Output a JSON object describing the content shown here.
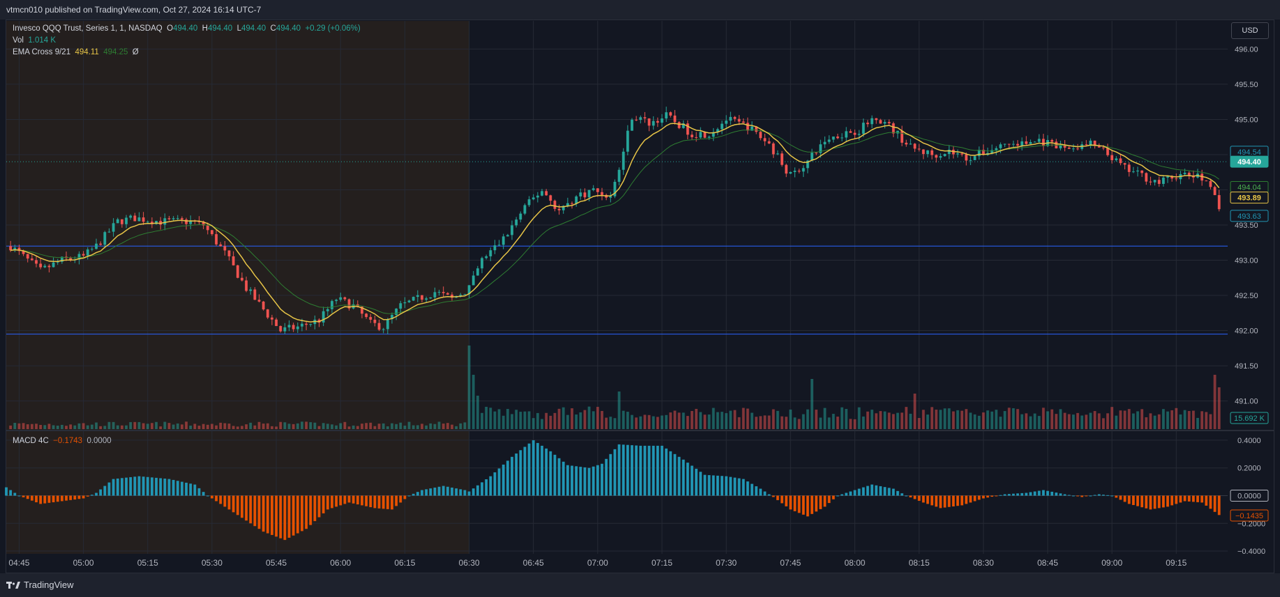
{
  "header": {
    "published": "vtmcn010 published on TradingView.com, Oct 27, 2024 16:14 UTC-7"
  },
  "footer": {
    "brand": "TradingView"
  },
  "currency_button": "USD",
  "legend": {
    "symbol": "Invesco QQQ Trust, Series 1, 1, NASDAQ",
    "o_label": "O",
    "o": "494.40",
    "h_label": "H",
    "h": "494.40",
    "l_label": "L",
    "l": "494.40",
    "c_label": "C",
    "c": "494.40",
    "change": "+0.29 (+0.06%)",
    "vol_label": "Vol",
    "vol": "1.014 K",
    "ema_label": "EMA Cross 9/21",
    "ema_fast": "494.11",
    "ema_slow": "494.25",
    "ema_extra": "Ø",
    "macd_label": "MACD 4C",
    "macd_value": "−0.1743",
    "macd_zero": "0.0000"
  },
  "colors": {
    "up": "#26a69a",
    "down": "#ef5350",
    "ema_fast": "#e8c547",
    "ema_slow": "#2e7d32",
    "macd_pos": "#2196b4",
    "macd_neg": "#e65100",
    "hline": "#2962ff",
    "premarket_bg": "#241f1e"
  },
  "chart_data": [
    {
      "type": "candlestick",
      "title": "Invesco QQQ Trust, Series 1, 1, NASDAQ",
      "x_ticks": [
        "04:45",
        "05:00",
        "05:15",
        "05:30",
        "05:45",
        "06:00",
        "06:15",
        "06:30",
        "06:45",
        "07:00",
        "07:15",
        "07:30",
        "07:45",
        "08:00",
        "08:15",
        "08:30",
        "08:45",
        "09:00",
        "09:15"
      ],
      "y_ticks": [
        "491.00",
        "491.50",
        "492.00",
        "492.50",
        "493.00",
        "493.50",
        "494.00",
        "494.50",
        "495.00",
        "495.50",
        "496.00"
      ],
      "ylim": [
        490.6,
        496.4
      ],
      "xlim_minutes": [
        "04:42",
        "09:27"
      ],
      "premarket_end": "06:30",
      "horizontal_lines": [
        493.2,
        491.95
      ],
      "last_price_line": 494.4,
      "price_labels": [
        {
          "value": "494.54",
          "role": "series"
        },
        {
          "value": "494.40",
          "role": "last"
        },
        {
          "value": "494.04",
          "role": "ema-slow"
        },
        {
          "value": "493.89",
          "role": "ema-fast"
        },
        {
          "value": "493.63",
          "role": "series"
        },
        {
          "value": "15.692 K",
          "role": "volume"
        }
      ],
      "price_path": [
        [
          "04:43",
          493.2
        ],
        [
          "04:50",
          492.85
        ],
        [
          "04:55",
          493.0
        ],
        [
          "05:00",
          493.05
        ],
        [
          "05:03",
          493.2
        ],
        [
          "05:08",
          493.55
        ],
        [
          "05:12",
          493.6
        ],
        [
          "05:18",
          493.55
        ],
        [
          "05:25",
          493.55
        ],
        [
          "05:28",
          493.5
        ],
        [
          "05:33",
          493.1
        ],
        [
          "05:38",
          492.6
        ],
        [
          "05:42",
          492.3
        ],
        [
          "05:46",
          492.0
        ],
        [
          "05:50",
          492.05
        ],
        [
          "05:55",
          492.15
        ],
        [
          "05:59",
          492.45
        ],
        [
          "06:03",
          492.35
        ],
        [
          "06:07",
          492.1
        ],
        [
          "06:10",
          492.05
        ],
        [
          "06:14",
          492.35
        ],
        [
          "06:18",
          492.45
        ],
        [
          "06:22",
          492.55
        ],
        [
          "06:26",
          492.45
        ],
        [
          "06:30",
          492.6
        ],
        [
          "06:33",
          493.0
        ],
        [
          "06:38",
          493.3
        ],
        [
          "06:43",
          493.75
        ],
        [
          "06:47",
          494.0
        ],
        [
          "06:51",
          493.7
        ],
        [
          "06:55",
          493.9
        ],
        [
          "06:59",
          494.0
        ],
        [
          "07:03",
          493.9
        ],
        [
          "07:05",
          494.3
        ],
        [
          "07:08",
          495.05
        ],
        [
          "07:12",
          494.95
        ],
        [
          "07:16",
          495.05
        ],
        [
          "07:22",
          494.8
        ],
        [
          "07:26",
          494.8
        ],
        [
          "07:30",
          495.0
        ],
        [
          "07:35",
          494.9
        ],
        [
          "07:40",
          494.65
        ],
        [
          "07:45",
          494.2
        ],
        [
          "07:49",
          494.4
        ],
        [
          "07:53",
          494.7
        ],
        [
          "07:57",
          494.8
        ],
        [
          "08:01",
          494.85
        ],
        [
          "08:05",
          495.05
        ],
        [
          "08:09",
          494.85
        ],
        [
          "08:13",
          494.6
        ],
        [
          "08:18",
          494.5
        ],
        [
          "08:22",
          494.55
        ],
        [
          "08:26",
          494.45
        ],
        [
          "08:31",
          494.55
        ],
        [
          "08:35",
          494.65
        ],
        [
          "08:39",
          494.65
        ],
        [
          "08:43",
          494.7
        ],
        [
          "08:47",
          494.6
        ],
        [
          "08:51",
          494.6
        ],
        [
          "08:55",
          494.65
        ],
        [
          "08:59",
          494.5
        ],
        [
          "09:03",
          494.3
        ],
        [
          "09:07",
          494.2
        ],
        [
          "09:11",
          494.1
        ],
        [
          "09:15",
          494.2
        ],
        [
          "09:19",
          494.2
        ],
        [
          "09:23",
          494.1
        ],
        [
          "09:25",
          493.7
        ]
      ],
      "volume_spikes": [
        [
          "06:30",
          2.0
        ],
        [
          "06:31",
          1.3
        ],
        [
          "06:32",
          0.8
        ],
        [
          "07:05",
          0.9
        ],
        [
          "07:50",
          1.2
        ],
        [
          "08:14",
          0.85
        ],
        [
          "09:24",
          1.3
        ],
        [
          "09:25",
          1.0
        ]
      ]
    },
    {
      "type": "bar",
      "title": "MACD 4C",
      "y_ticks": [
        "0.4000",
        "0.2000",
        "0.0000",
        "−0.2000",
        "−0.4000"
      ],
      "ylim": [
        -0.42,
        0.46
      ],
      "last_value_label": "−0.1435",
      "zero_label": "0.0000",
      "histogram_path": [
        [
          "04:42",
          0.06
        ],
        [
          "04:45",
          0.0
        ],
        [
          "04:50",
          -0.06
        ],
        [
          "04:55",
          -0.04
        ],
        [
          "05:00",
          -0.02
        ],
        [
          "05:03",
          0.02
        ],
        [
          "05:07",
          0.12
        ],
        [
          "05:13",
          0.14
        ],
        [
          "05:20",
          0.12
        ],
        [
          "05:26",
          0.08
        ],
        [
          "05:29",
          0.0
        ],
        [
          "05:35",
          -0.12
        ],
        [
          "05:42",
          -0.26
        ],
        [
          "05:47",
          -0.32
        ],
        [
          "05:52",
          -0.24
        ],
        [
          "05:57",
          -0.1
        ],
        [
          "06:02",
          -0.05
        ],
        [
          "06:08",
          -0.09
        ],
        [
          "06:12",
          -0.1
        ],
        [
          "06:16",
          0.0
        ],
        [
          "06:19",
          0.04
        ],
        [
          "06:24",
          0.07
        ],
        [
          "06:29",
          0.04
        ],
        [
          "06:30",
          0.03
        ],
        [
          "06:35",
          0.14
        ],
        [
          "06:40",
          0.28
        ],
        [
          "06:45",
          0.4
        ],
        [
          "06:49",
          0.32
        ],
        [
          "06:53",
          0.22
        ],
        [
          "06:58",
          0.2
        ],
        [
          "07:01",
          0.23
        ],
        [
          "07:05",
          0.37
        ],
        [
          "07:10",
          0.36
        ],
        [
          "07:15",
          0.36
        ],
        [
          "07:20",
          0.26
        ],
        [
          "07:25",
          0.15
        ],
        [
          "07:30",
          0.14
        ],
        [
          "07:34",
          0.12
        ],
        [
          "07:38",
          0.05
        ],
        [
          "07:41",
          -0.01
        ],
        [
          "07:45",
          -0.1
        ],
        [
          "07:49",
          -0.15
        ],
        [
          "07:53",
          -0.08
        ],
        [
          "07:56",
          0.0
        ],
        [
          "08:00",
          0.04
        ],
        [
          "08:04",
          0.08
        ],
        [
          "08:09",
          0.05
        ],
        [
          "08:12",
          0.0
        ],
        [
          "08:16",
          -0.05
        ],
        [
          "08:20",
          -0.09
        ],
        [
          "08:25",
          -0.07
        ],
        [
          "08:30",
          -0.02
        ],
        [
          "08:35",
          0.01
        ],
        [
          "08:40",
          0.02
        ],
        [
          "08:44",
          0.04
        ],
        [
          "08:49",
          0.01
        ],
        [
          "08:53",
          -0.01
        ],
        [
          "08:57",
          0.01
        ],
        [
          "09:00",
          0.0
        ],
        [
          "09:04",
          -0.06
        ],
        [
          "09:09",
          -0.1
        ],
        [
          "09:13",
          -0.08
        ],
        [
          "09:17",
          -0.04
        ],
        [
          "09:21",
          -0.05
        ],
        [
          "09:25",
          -0.14
        ]
      ]
    }
  ]
}
